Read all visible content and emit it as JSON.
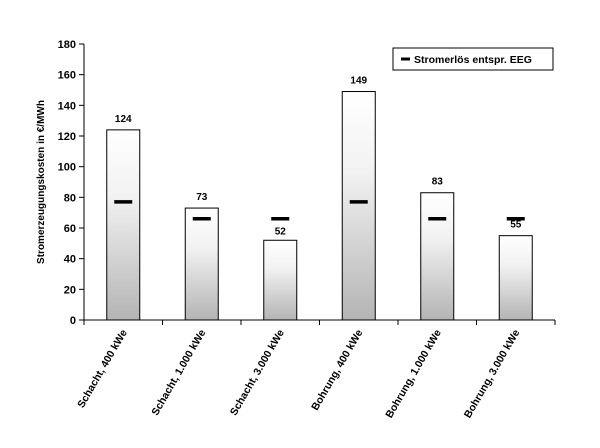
{
  "chart_data": {
    "type": "bar",
    "categories": [
      "Schacht, 400 kWe",
      "Schacht, 1.000 kWe",
      "Schacht, 3.000 kWe",
      "Bohrung, 400 kWe",
      "Bohrung, 1.000 kWe",
      "Bohrung, 3.000 kWe"
    ],
    "values": [
      124,
      73,
      52,
      149,
      83,
      55
    ],
    "data_labels": [
      "124",
      "73",
      "52",
      "149",
      "83",
      "55"
    ],
    "marker_series": {
      "name": "Stromerlös entspr. EEG",
      "values": [
        77,
        66,
        66,
        77,
        66,
        66
      ]
    },
    "title": "",
    "xlabel": "",
    "ylabel": "Stromerzeugungskosten in €/MWh",
    "ylim": [
      0,
      180
    ],
    "yticks": [
      0,
      20,
      40,
      60,
      80,
      100,
      120,
      140,
      160,
      180
    ],
    "grid": false,
    "legend_position": "top-right",
    "colors": {
      "bar_top": "#ffffff",
      "bar_bottom": "#b4b4b4",
      "bar_stroke": "#000000",
      "marker": "#000000"
    }
  }
}
